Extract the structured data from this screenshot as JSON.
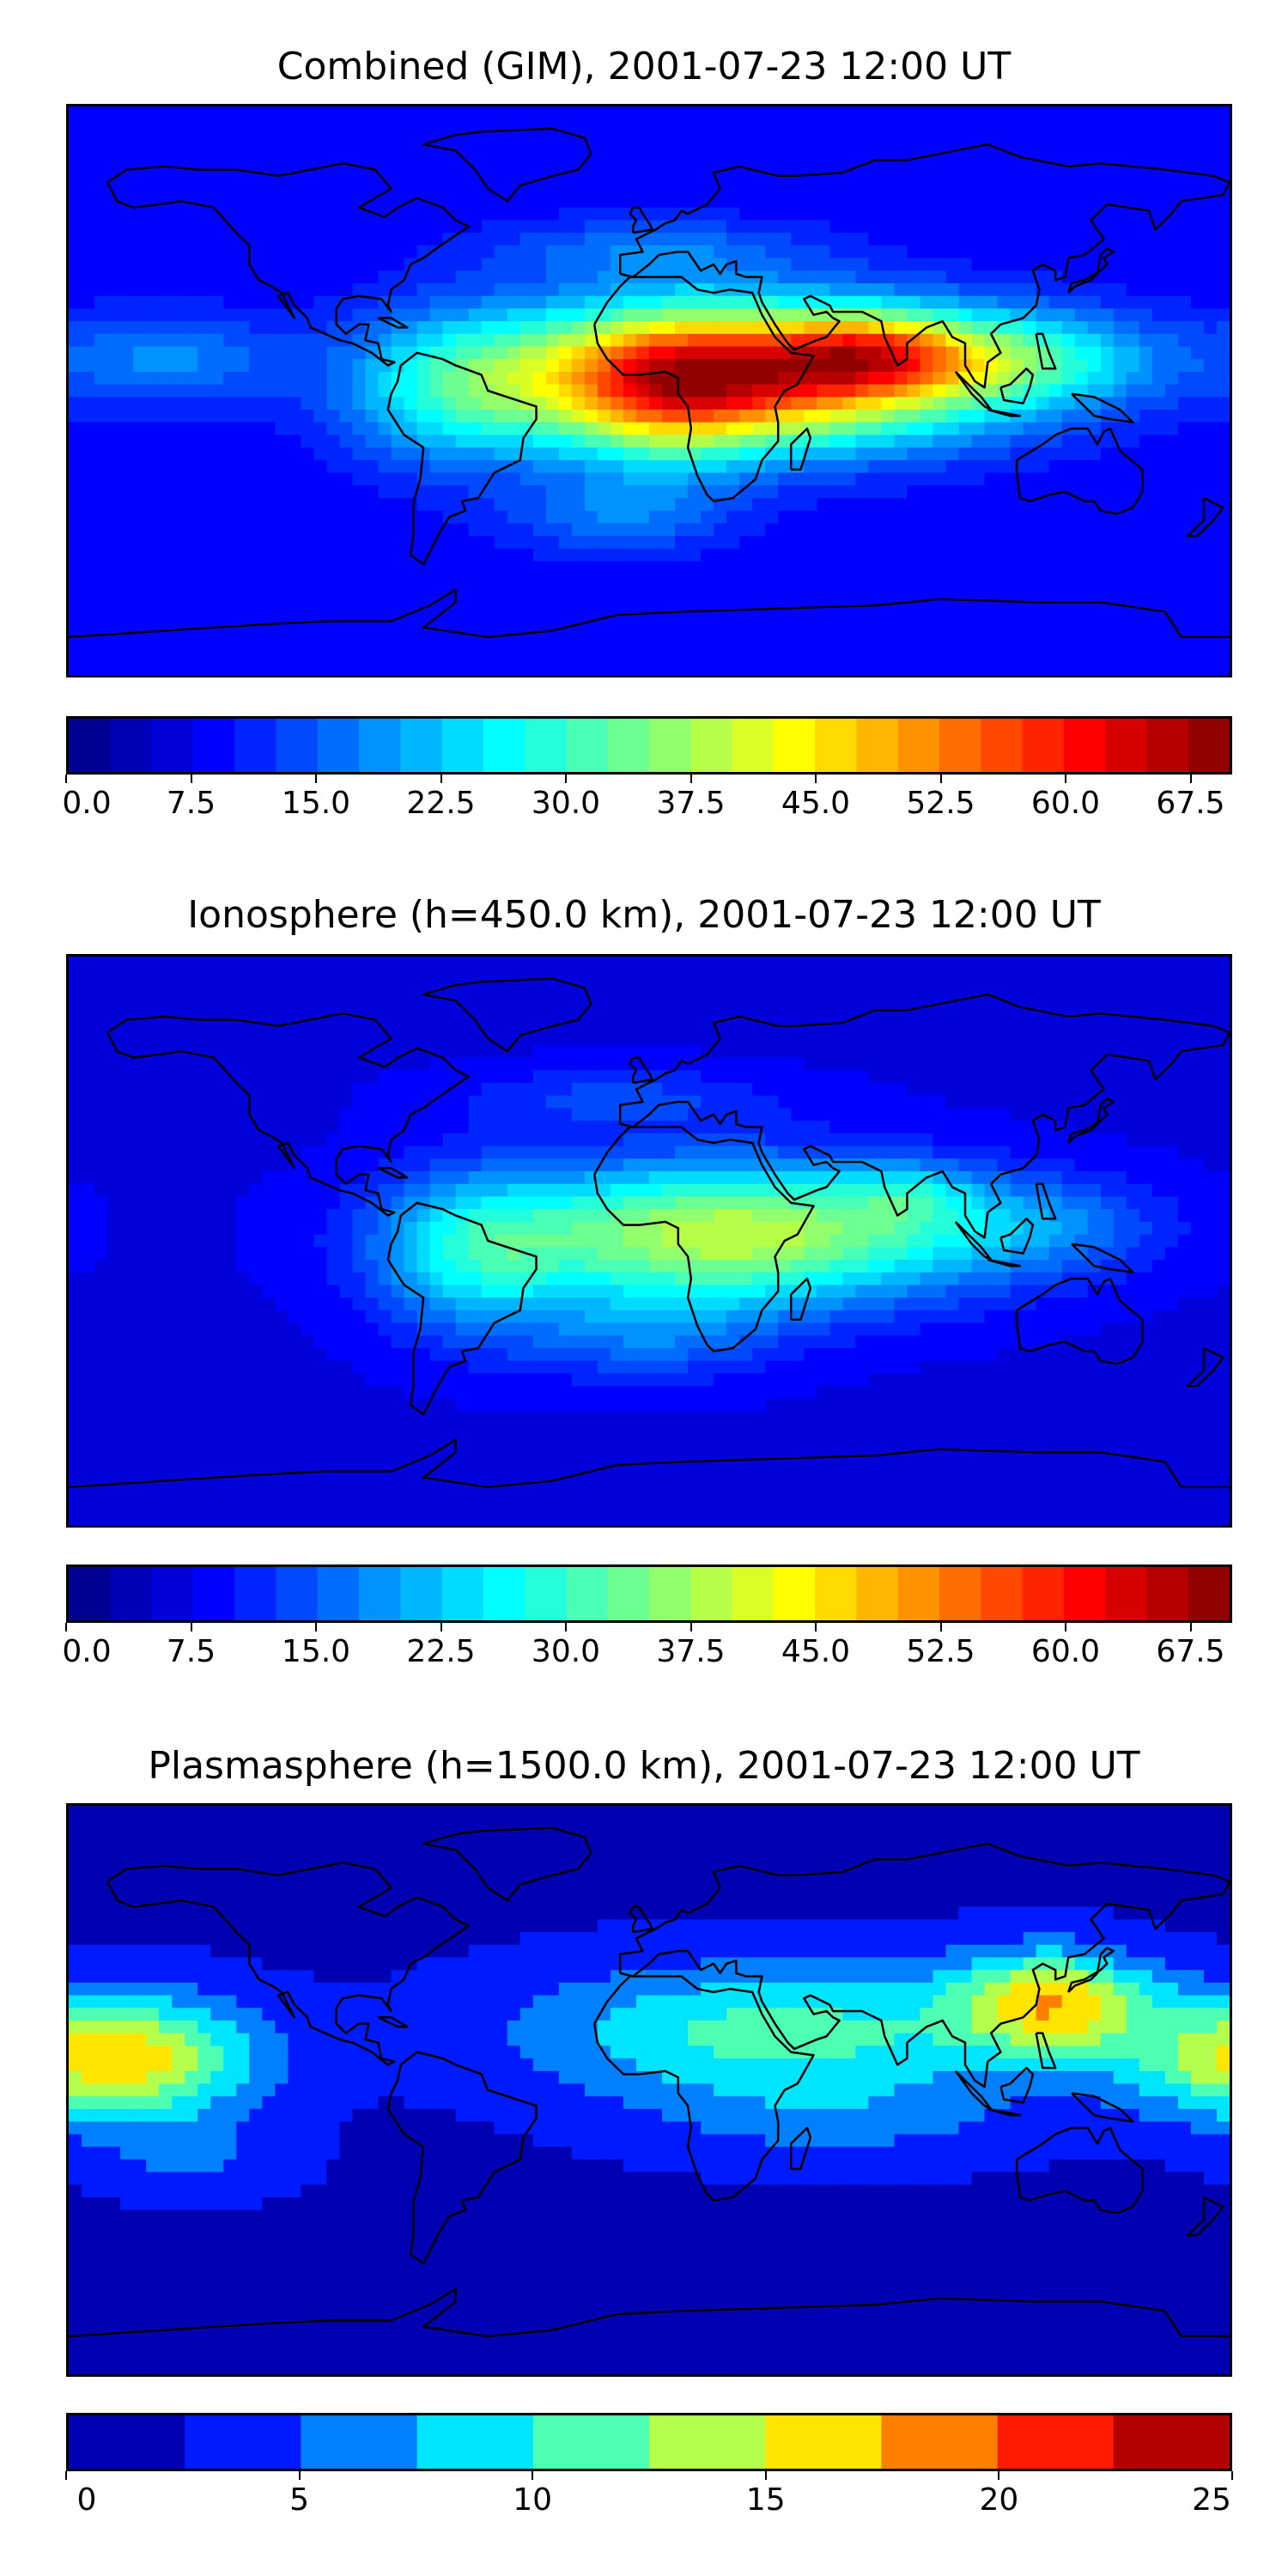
{
  "panels": [
    {
      "title": "Combined (GIM), 2001-07-23 12:00 UT",
      "colorbar": {
        "ticks": [
          "0.0",
          "7.5",
          "15.0",
          "22.5",
          "30.0",
          "37.5",
          "45.0",
          "52.5",
          "60.0",
          "67.5"
        ],
        "tick_values": [
          0,
          7.5,
          15,
          22.5,
          30,
          37.5,
          45,
          52.5,
          60,
          67.5
        ],
        "range": [
          0,
          70
        ],
        "levels": 28
      },
      "field": {
        "background": 8,
        "blobs": [
          {
            "lon": 30,
            "lat": 5,
            "value": 52,
            "rx": 75,
            "ry": 22
          },
          {
            "lon": 70,
            "lat": 12,
            "value": 20,
            "rx": 30,
            "ry": 12
          },
          {
            "lon": 5,
            "lat": -2,
            "value": 15,
            "rx": 30,
            "ry": 25
          },
          {
            "lon": -60,
            "lat": 0,
            "value": 14,
            "rx": 35,
            "ry": 25
          },
          {
            "lon": 120,
            "lat": 10,
            "value": 14,
            "rx": 40,
            "ry": 15
          },
          {
            "lon": -150,
            "lat": 10,
            "value": 10,
            "rx": 35,
            "ry": 15
          },
          {
            "lon": -10,
            "lat": -40,
            "value": 8,
            "rx": 35,
            "ry": 12
          },
          {
            "lon": 0,
            "lat": 45,
            "value": 8,
            "rx": 50,
            "ry": 10
          }
        ]
      }
    },
    {
      "title": "Ionosphere  (h=450.0 km), 2001-07-23 12:00 UT",
      "colorbar": {
        "ticks": [
          "0.0",
          "7.5",
          "15.0",
          "22.5",
          "30.0",
          "37.5",
          "45.0",
          "52.5",
          "60.0",
          "67.5"
        ],
        "tick_values": [
          0,
          7.5,
          15,
          22.5,
          30,
          37.5,
          45,
          52.5,
          60,
          67.5
        ],
        "range": [
          0,
          70
        ],
        "levels": 28
      },
      "field": {
        "background": 7,
        "blobs": [
          {
            "lon": 25,
            "lat": 2,
            "value": 33,
            "rx": 75,
            "ry": 22
          },
          {
            "lon": 80,
            "lat": 15,
            "value": 8,
            "rx": 20,
            "ry": 10
          },
          {
            "lon": -55,
            "lat": -5,
            "value": 14,
            "rx": 30,
            "ry": 25
          },
          {
            "lon": 0,
            "lat": -30,
            "value": 8,
            "rx": 40,
            "ry": 15
          },
          {
            "lon": 120,
            "lat": 5,
            "value": 8,
            "rx": 40,
            "ry": 15
          },
          {
            "lon": -10,
            "lat": 45,
            "value": 6,
            "rx": 50,
            "ry": 10
          }
        ]
      }
    },
    {
      "title": "Plasmasphere (h=1500.0 km), 2001-07-23 12:00 UT",
      "colorbar": {
        "ticks": [
          "0",
          "5",
          "10",
          "15",
          "20",
          "25"
        ],
        "tick_values": [
          0,
          5,
          10,
          15,
          20,
          25
        ],
        "range": [
          0,
          25
        ],
        "levels": 10
      },
      "field": {
        "background": 2,
        "blobs": [
          {
            "lon": 125,
            "lat": 28,
            "value": 13,
            "rx": 30,
            "ry": 16
          },
          {
            "lon": 40,
            "lat": 18,
            "value": 9,
            "rx": 80,
            "ry": 22
          },
          {
            "lon": -160,
            "lat": 10,
            "value": 11,
            "rx": 40,
            "ry": 20
          },
          {
            "lon": 180,
            "lat": 10,
            "value": 5,
            "rx": 40,
            "ry": 18
          },
          {
            "lon": 60,
            "lat": -10,
            "value": 3,
            "rx": 60,
            "ry": 15
          },
          {
            "lon": -140,
            "lat": -22,
            "value": 3,
            "rx": 30,
            "ry": 12
          }
        ]
      }
    }
  ],
  "map": {
    "projection": "plate-carree",
    "extent": {
      "lon": [
        -180,
        180
      ],
      "lat": [
        -90,
        90
      ]
    },
    "colormap": "jet",
    "coastline_color": "#000000"
  }
}
